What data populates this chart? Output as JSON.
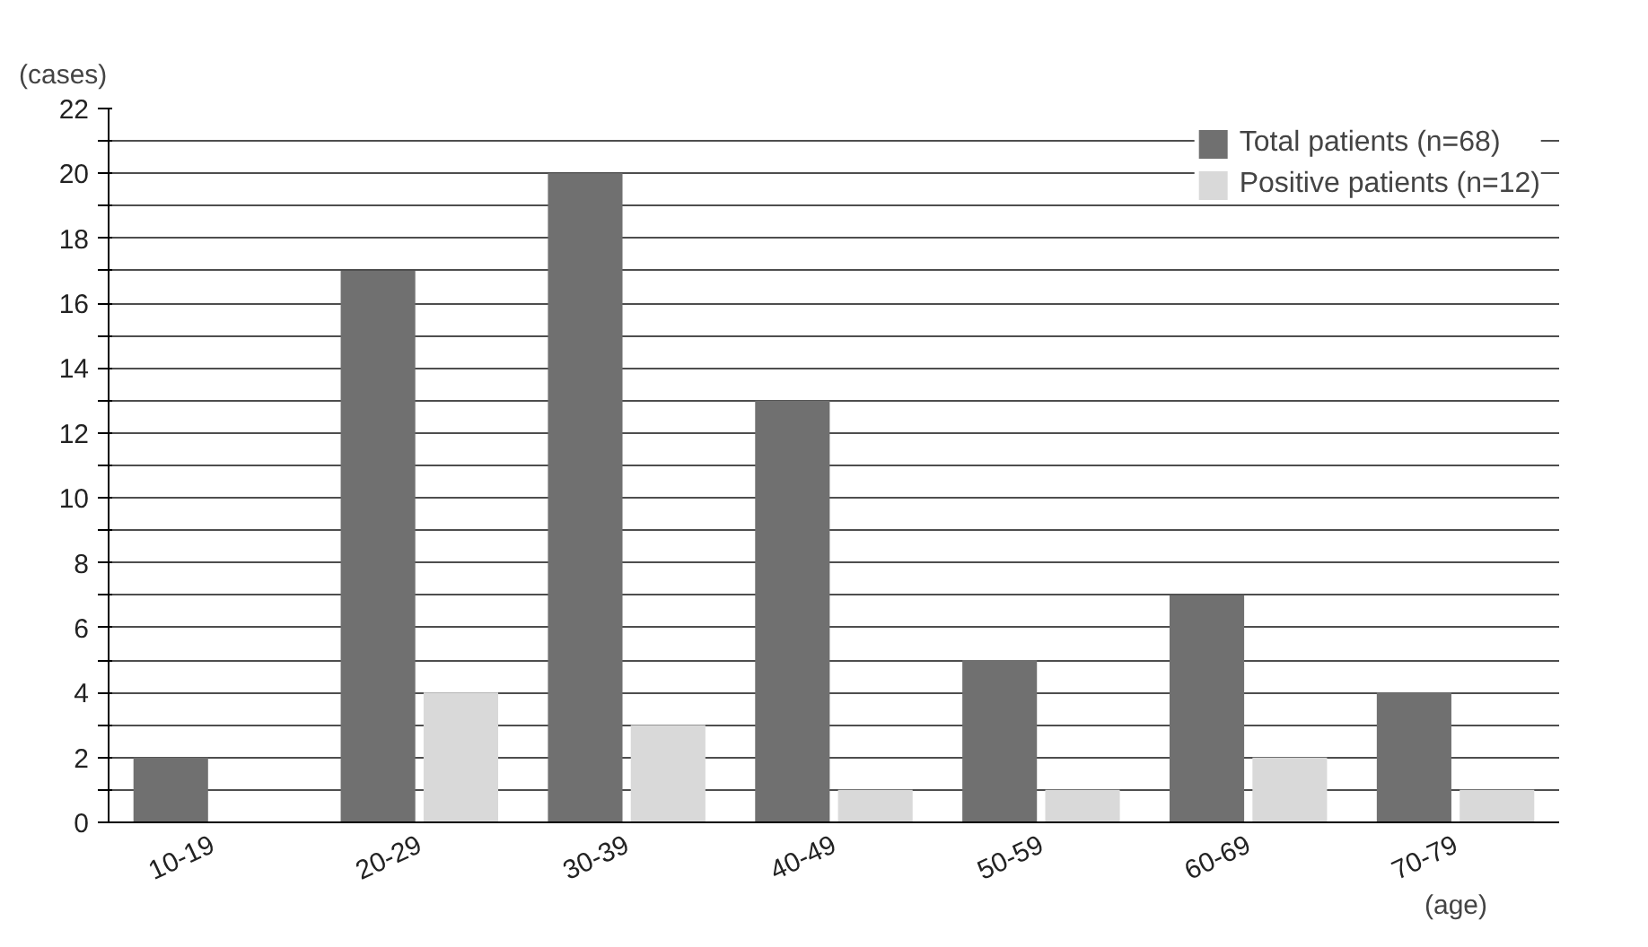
{
  "chart_data": {
    "type": "bar",
    "ylabel": "(cases)",
    "xlabel": "(age)",
    "categories": [
      "10-19",
      "20-29",
      "30-39",
      "40-49",
      "50-59",
      "60-69",
      "70-79"
    ],
    "series": [
      {
        "name": "Total patients (n=68)",
        "color": "#707070",
        "values": [
          2,
          17,
          20,
          13,
          5,
          7,
          4
        ]
      },
      {
        "name": "Positive patients (n=12)",
        "color": "#d9d9d9",
        "values": [
          0,
          4,
          3,
          1,
          1,
          2,
          1
        ]
      }
    ],
    "ylim": [
      0,
      22
    ],
    "yticks": [
      0,
      {
        "value": 1,
        "label": null
      },
      2,
      {
        "value": 3,
        "label": null
      },
      4,
      {
        "value": 5,
        "label": null
      },
      6,
      {
        "value": 7,
        "label": null
      },
      8,
      {
        "value": 9,
        "label": null
      },
      10,
      {
        "value": 11,
        "label": null
      },
      12,
      {
        "value": 13,
        "label": null
      },
      14,
      {
        "value": 15,
        "label": null
      },
      16,
      {
        "value": 17,
        "label": null
      },
      18,
      {
        "value": 19,
        "label": null
      },
      20,
      {
        "value": 21,
        "label": null
      },
      22
    ],
    "grid": "y",
    "legend": "top right"
  }
}
